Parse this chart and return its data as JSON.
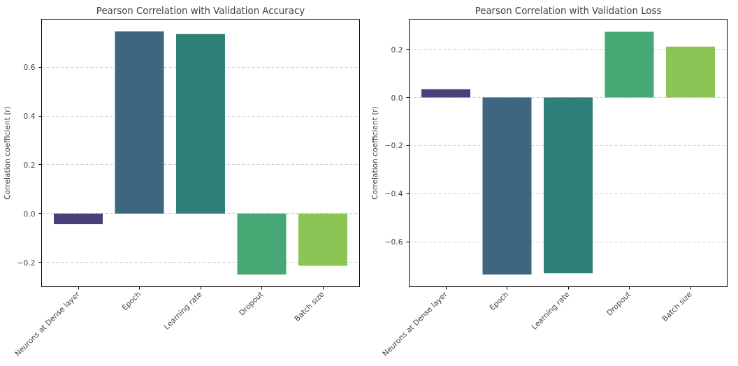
{
  "chart_data": [
    {
      "type": "bar",
      "title": "Pearson Correlation with Validation Accuracy",
      "ylabel": "Correlation coefficient (r)",
      "categories": [
        "Neurons at Dense layer",
        "Epoch",
        "Learning rate",
        "Dropout",
        "Batch size"
      ],
      "values": [
        -0.044,
        0.747,
        0.736,
        -0.25,
        -0.214
      ],
      "colors": [
        "#4a3f7a",
        "#3e6680",
        "#2f8079",
        "#46a874",
        "#8dc456"
      ],
      "ylim": [
        -0.3,
        0.797
      ],
      "yticks": [
        {
          "value": -0.2,
          "label": "−0.2"
        },
        {
          "value": 0,
          "label": "0.0"
        },
        {
          "value": 0.2,
          "label": "0.2"
        },
        {
          "value": 0.4,
          "label": "0.4"
        },
        {
          "value": 0.6,
          "label": "0.6"
        }
      ],
      "grid": "y"
    },
    {
      "type": "bar",
      "title": "Pearson Correlation with Validation Loss",
      "ylabel": "Correlation coefficient (r)",
      "categories": [
        "Neurons at Dense layer",
        "Epoch",
        "Learning rate",
        "Dropout",
        "Batch size"
      ],
      "values": [
        0.034,
        -0.735,
        -0.73,
        0.273,
        0.211
      ],
      "colors": [
        "#4a3f7a",
        "#3e6680",
        "#2f8079",
        "#46a874",
        "#8dc456"
      ],
      "ylim": [
        -0.786,
        0.325
      ],
      "yticks": [
        {
          "value": -0.6,
          "label": "−0.6"
        },
        {
          "value": -0.4,
          "label": "−0.4"
        },
        {
          "value": -0.2,
          "label": "−0.2"
        },
        {
          "value": 0,
          "label": "0.0"
        },
        {
          "value": 0.2,
          "label": "0.2"
        }
      ],
      "grid": "y"
    }
  ]
}
